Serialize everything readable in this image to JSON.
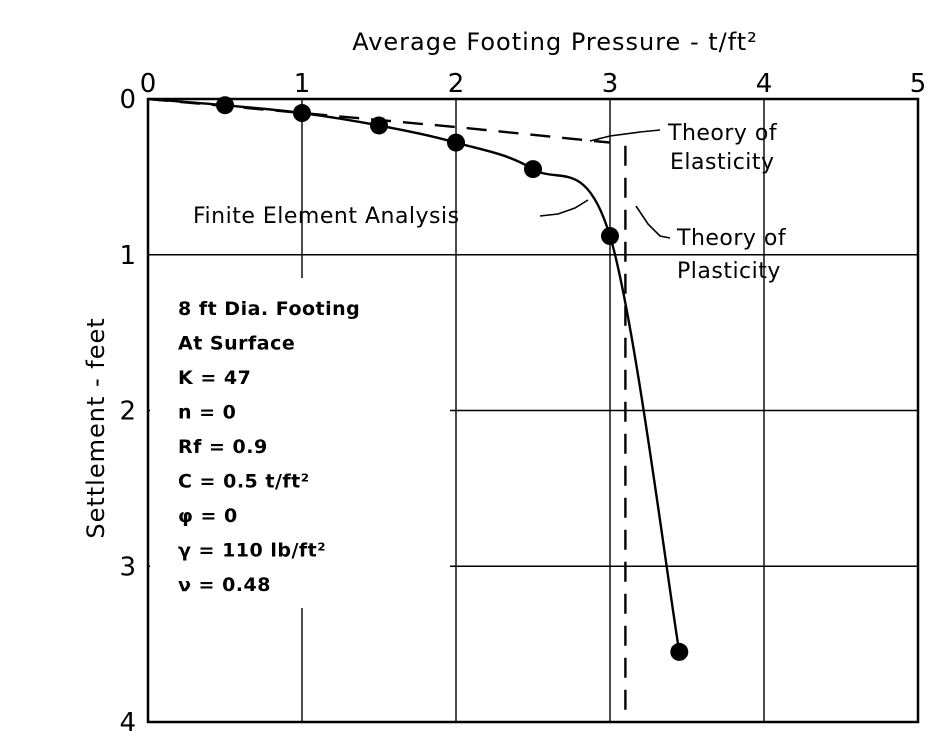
{
  "chart_data": {
    "type": "line",
    "title": "",
    "xlabel": "Average Footing Pressure - t/ft²",
    "ylabel": "Settlement - feet",
    "xlim": [
      0,
      5
    ],
    "ylim": [
      4,
      0
    ],
    "x_ticks": [
      "0",
      "1",
      "2",
      "3",
      "4",
      "5"
    ],
    "y_ticks": [
      "0",
      "1",
      "2",
      "3",
      "4"
    ],
    "grid": true,
    "series": [
      {
        "name": "Finite Element Analysis",
        "style": "solid",
        "markers": true,
        "points": [
          [
            0.5,
            0.04
          ],
          [
            1.0,
            0.09
          ],
          [
            1.5,
            0.17
          ],
          [
            2.0,
            0.28
          ],
          [
            2.5,
            0.45
          ],
          [
            3.0,
            0.88
          ],
          [
            3.45,
            3.55
          ]
        ]
      },
      {
        "name": "Theory of Elasticity",
        "style": "dashed",
        "markers": false,
        "points": [
          [
            0,
            0
          ],
          [
            1.0,
            0.09
          ],
          [
            2.0,
            0.18
          ],
          [
            3.0,
            0.28
          ]
        ]
      },
      {
        "name": "Theory of Plasticity",
        "style": "dashed",
        "markers": false,
        "points": [
          [
            3.1,
            0.3
          ],
          [
            3.1,
            4.0
          ]
        ]
      }
    ],
    "annotations": [
      {
        "target": "Theory of Elasticity",
        "lines": [
          "Theory of",
          "Elasticity"
        ]
      },
      {
        "target": "Finite Element Analysis",
        "lines": [
          "Finite Element Analysis"
        ]
      },
      {
        "target": "Theory of Plasticity",
        "lines": [
          "Theory of",
          "Plasticity"
        ]
      }
    ],
    "parameters": [
      "8 ft Dia. Footing",
      "At Surface",
      "K = 47",
      "n = 0",
      "Rf = 0.9",
      "C = 0.5 t/ft²",
      "φ = 0",
      "γ = 110 lb/ft²",
      "ν = 0.48"
    ]
  }
}
